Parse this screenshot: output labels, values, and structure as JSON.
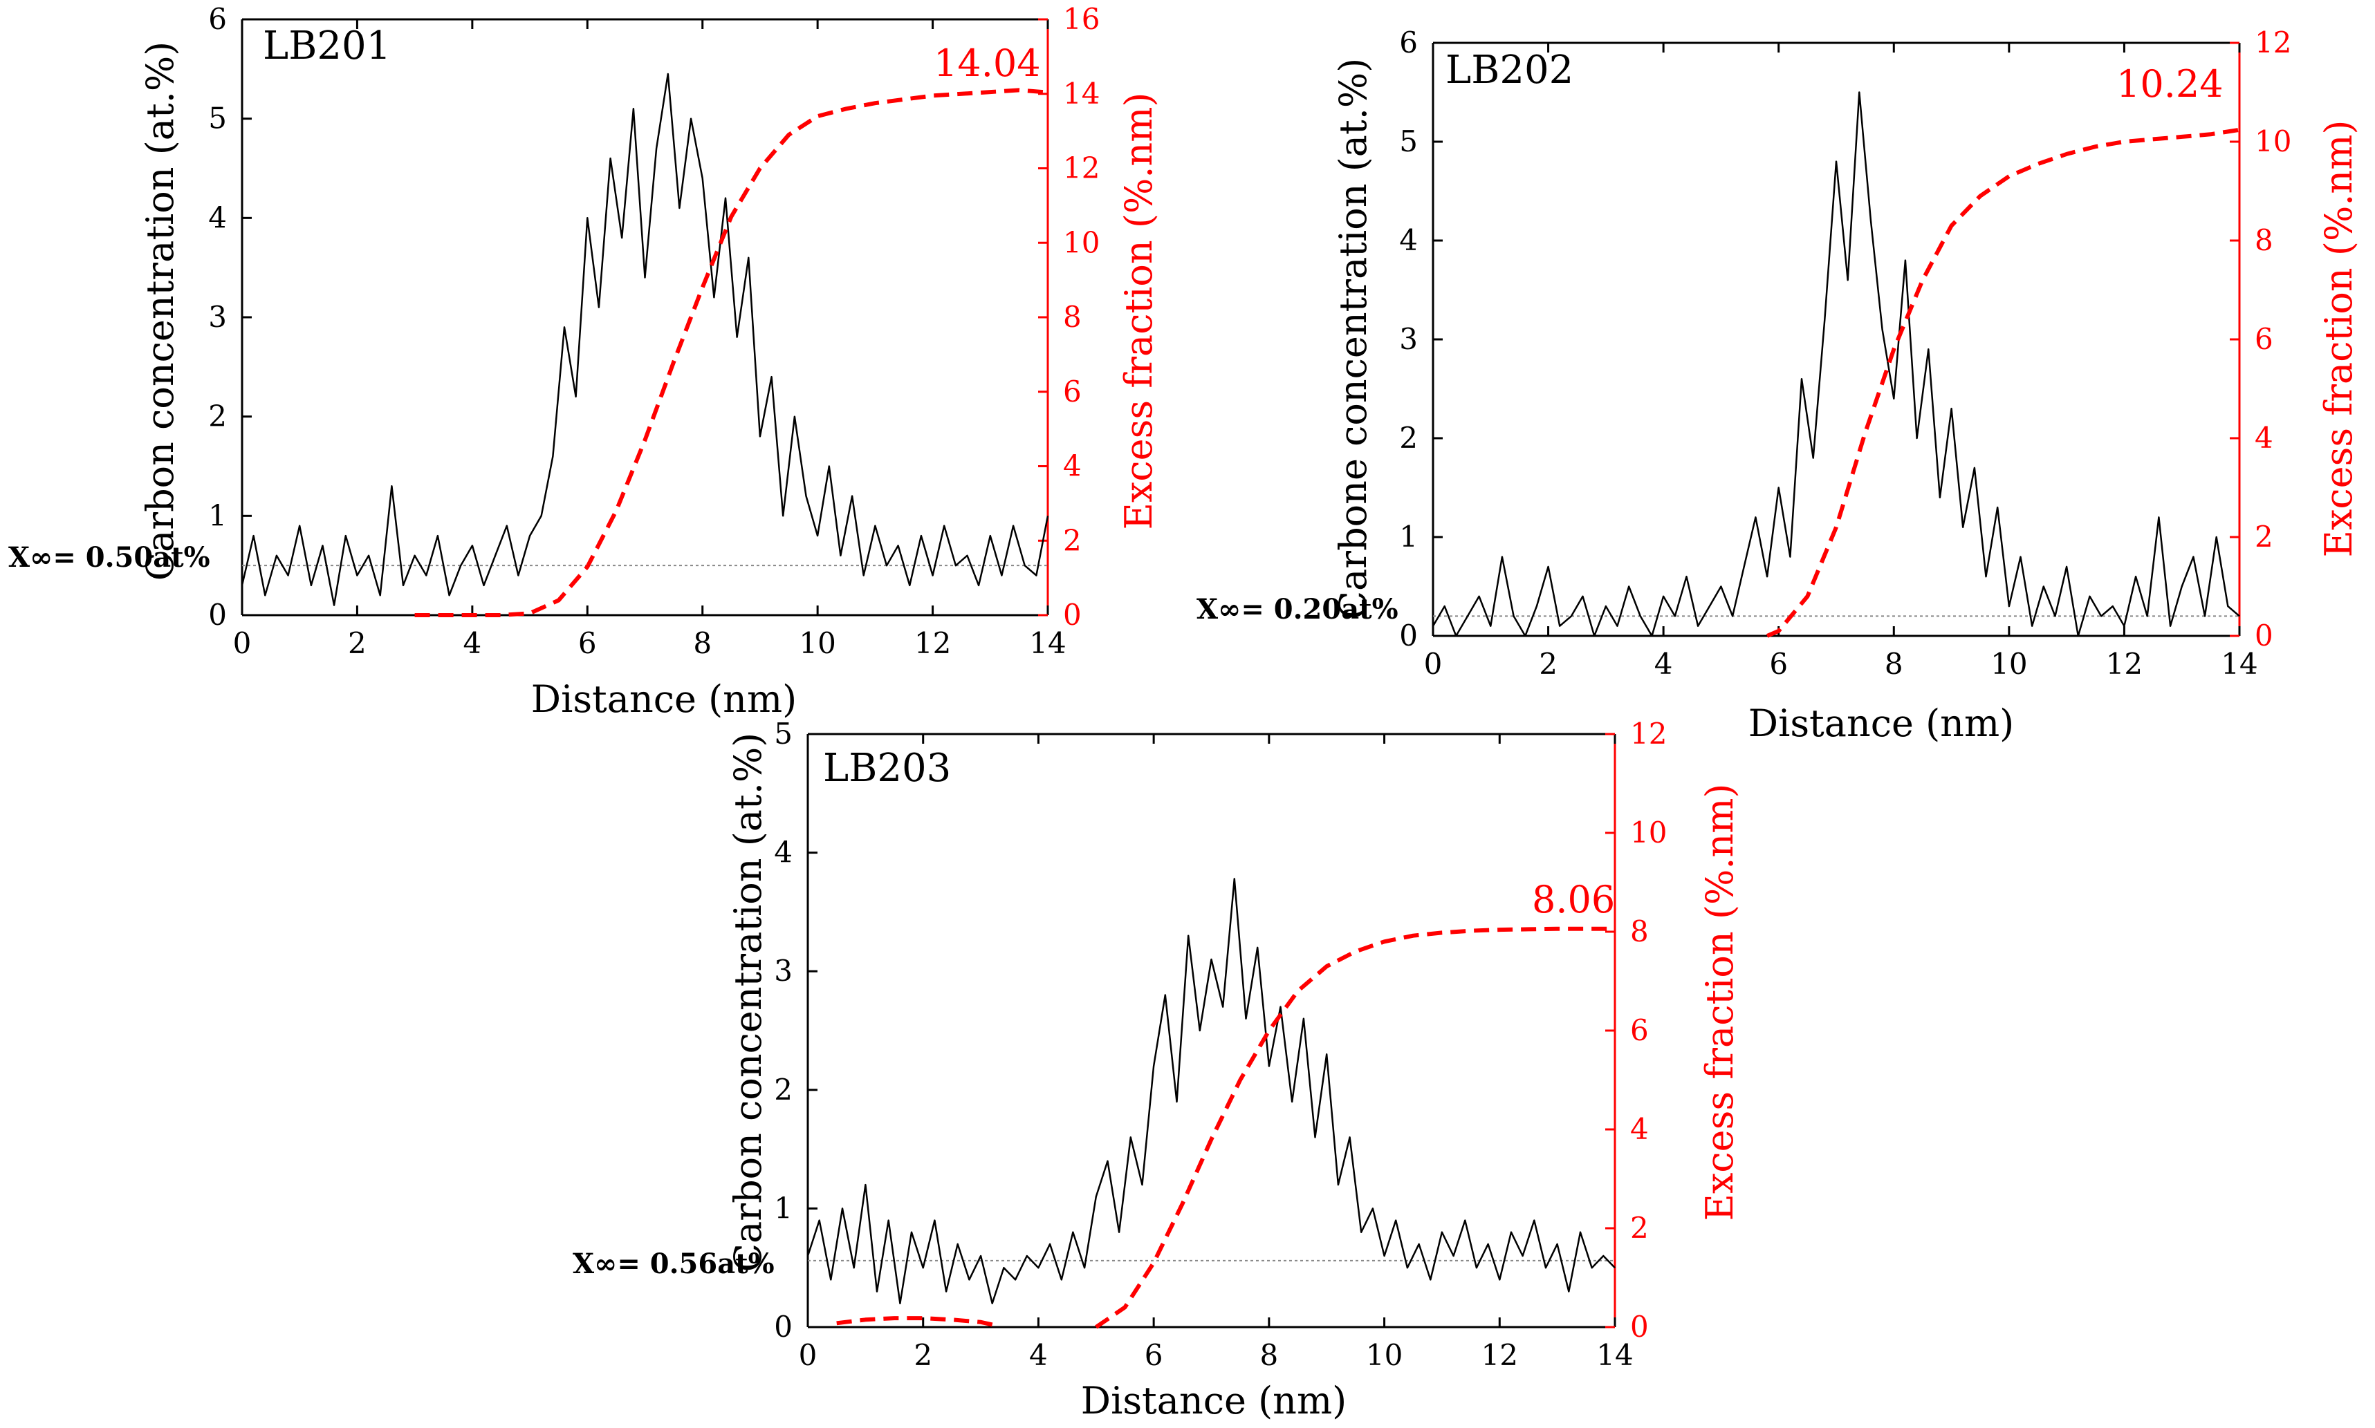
{
  "chart_data": [
    {
      "type": "line",
      "title": "LB201",
      "xlabel": "Distance (nm)",
      "ylabel": "Carbon concentration (at.%)",
      "ylabel_right": "Excess fraction (%.nm)",
      "xlim": [
        0,
        14
      ],
      "ylim": [
        0,
        6
      ],
      "ylim_right": [
        0,
        16
      ],
      "xticks": [
        "0",
        "2",
        "4",
        "6",
        "8",
        "10",
        "12",
        "14"
      ],
      "yticks": [
        "0",
        "1",
        "2",
        "3",
        "4",
        "5",
        "6"
      ],
      "yticks_right": [
        "0",
        "2",
        "4",
        "6",
        "8",
        "10",
        "12",
        "14",
        "16"
      ],
      "baseline_label": "X∞= 0.50at%",
      "baseline_value": 0.5,
      "excess_label": "14.04",
      "series": [
        {
          "name": "Carbon concentration",
          "axis": "left",
          "x": [
            0,
            0.2,
            0.4,
            0.6,
            0.8,
            1,
            1.2,
            1.4,
            1.6,
            1.8,
            2,
            2.2,
            2.4,
            2.6,
            2.8,
            3,
            3.2,
            3.4,
            3.6,
            3.8,
            4,
            4.2,
            4.4,
            4.6,
            4.8,
            5,
            5.2,
            5.4,
            5.6,
            5.8,
            6,
            6.2,
            6.4,
            6.6,
            6.8,
            7,
            7.2,
            7.4,
            7.6,
            7.8,
            8,
            8.2,
            8.4,
            8.6,
            8.8,
            9,
            9.2,
            9.4,
            9.6,
            9.8,
            10,
            10.2,
            10.4,
            10.6,
            10.8,
            11,
            11.2,
            11.4,
            11.6,
            11.8,
            12,
            12.2,
            12.4,
            12.6,
            12.8,
            13,
            13.2,
            13.4,
            13.6,
            13.8,
            14
          ],
          "values": [
            0.3,
            0.8,
            0.2,
            0.6,
            0.4,
            0.9,
            0.3,
            0.7,
            0.1,
            0.8,
            0.4,
            0.6,
            0.2,
            1.3,
            0.3,
            0.6,
            0.4,
            0.8,
            0.2,
            0.5,
            0.7,
            0.3,
            0.6,
            0.9,
            0.4,
            0.8,
            1.0,
            1.6,
            2.9,
            2.2,
            4.0,
            3.1,
            4.6,
            3.8,
            5.1,
            3.4,
            4.7,
            5.45,
            4.1,
            5.0,
            4.4,
            3.2,
            4.2,
            2.8,
            3.6,
            1.8,
            2.4,
            1.0,
            2.0,
            1.2,
            0.8,
            1.5,
            0.6,
            1.2,
            0.4,
            0.9,
            0.5,
            0.7,
            0.3,
            0.8,
            0.4,
            0.9,
            0.5,
            0.6,
            0.3,
            0.8,
            0.4,
            0.9,
            0.5,
            0.4,
            1.0
          ]
        },
        {
          "name": "Excess fraction",
          "axis": "right",
          "x": [
            3.0,
            3.5,
            4.0,
            4.5,
            5.0,
            5.5,
            6.0,
            6.5,
            7.0,
            7.5,
            8.0,
            8.5,
            9.0,
            9.5,
            10.0,
            10.5,
            11.0,
            11.5,
            12.0,
            12.5,
            13.0,
            13.5,
            14.0
          ],
          "values": [
            0.0,
            0.0,
            0.0,
            0.0,
            0.05,
            0.4,
            1.3,
            2.8,
            4.7,
            6.8,
            8.8,
            10.7,
            12.0,
            12.9,
            13.4,
            13.6,
            13.75,
            13.85,
            13.95,
            14.0,
            14.05,
            14.1,
            14.04
          ]
        }
      ]
    },
    {
      "type": "line",
      "title": "LB202",
      "xlabel": "Distance (nm)",
      "ylabel": "Carbone concentration (at.%)",
      "ylabel_right": "Excess fraction (%.nm)",
      "xlim": [
        0,
        14
      ],
      "ylim": [
        0,
        6
      ],
      "ylim_right": [
        0,
        12
      ],
      "xticks": [
        "0",
        "2",
        "4",
        "6",
        "8",
        "10",
        "12",
        "14"
      ],
      "yticks": [
        "0",
        "1",
        "2",
        "3",
        "4",
        "5",
        "6"
      ],
      "yticks_right": [
        "0",
        "2",
        "4",
        "6",
        "8",
        "10",
        "12"
      ],
      "baseline_label": "X∞= 0.20at%",
      "baseline_value": 0.2,
      "excess_label": "10.24",
      "series": [
        {
          "name": "Carbon concentration",
          "axis": "left",
          "x": [
            0,
            0.2,
            0.4,
            0.6,
            0.8,
            1,
            1.2,
            1.4,
            1.6,
            1.8,
            2,
            2.2,
            2.4,
            2.6,
            2.8,
            3,
            3.2,
            3.4,
            3.6,
            3.8,
            4,
            4.2,
            4.4,
            4.6,
            4.8,
            5,
            5.2,
            5.4,
            5.6,
            5.8,
            6,
            6.2,
            6.4,
            6.6,
            6.8,
            7,
            7.2,
            7.4,
            7.6,
            7.8,
            8,
            8.2,
            8.4,
            8.6,
            8.8,
            9,
            9.2,
            9.4,
            9.6,
            9.8,
            10,
            10.2,
            10.4,
            10.6,
            10.8,
            11,
            11.2,
            11.4,
            11.6,
            11.8,
            12,
            12.2,
            12.4,
            12.6,
            12.8,
            13,
            13.2,
            13.4,
            13.6,
            13.8,
            14
          ],
          "values": [
            0.1,
            0.3,
            0.0,
            0.2,
            0.4,
            0.1,
            0.8,
            0.2,
            0.0,
            0.3,
            0.7,
            0.1,
            0.2,
            0.4,
            0.0,
            0.3,
            0.1,
            0.5,
            0.2,
            0.0,
            0.4,
            0.2,
            0.6,
            0.1,
            0.3,
            0.5,
            0.2,
            0.7,
            1.2,
            0.6,
            1.5,
            0.8,
            2.6,
            1.8,
            3.2,
            4.8,
            3.6,
            5.5,
            4.2,
            3.1,
            2.4,
            3.8,
            2.0,
            2.9,
            1.4,
            2.3,
            1.1,
            1.7,
            0.6,
            1.3,
            0.3,
            0.8,
            0.1,
            0.5,
            0.2,
            0.7,
            0.0,
            0.4,
            0.2,
            0.3,
            0.1,
            0.6,
            0.2,
            1.2,
            0.1,
            0.5,
            0.8,
            0.2,
            1.0,
            0.3,
            0.2
          ]
        },
        {
          "name": "Excess fraction",
          "axis": "right",
          "x": [
            5.8,
            6.0,
            6.5,
            7.0,
            7.5,
            8.0,
            8.5,
            9.0,
            9.5,
            10.0,
            10.5,
            11.0,
            11.5,
            12.0,
            12.5,
            13.0,
            13.5,
            14.0
          ],
          "values": [
            0.0,
            0.1,
            0.8,
            2.2,
            4.1,
            5.8,
            7.2,
            8.3,
            8.9,
            9.3,
            9.55,
            9.75,
            9.9,
            10.0,
            10.05,
            10.1,
            10.15,
            10.24
          ]
        }
      ]
    },
    {
      "type": "line",
      "title": "LB203",
      "xlabel": "Distance (nm)",
      "ylabel": "Carbon concentration (at.%)",
      "ylabel_right": "Excess fraction (%.nm)",
      "xlim": [
        0,
        14
      ],
      "ylim": [
        0,
        5
      ],
      "ylim_right": [
        0,
        12
      ],
      "xticks": [
        "0",
        "2",
        "4",
        "6",
        "8",
        "10",
        "12",
        "14"
      ],
      "yticks": [
        "0",
        "1",
        "2",
        "3",
        "4",
        "5"
      ],
      "yticks_right": [
        "0",
        "2",
        "4",
        "6",
        "8",
        "10",
        "12"
      ],
      "baseline_label": "X∞= 0.56at%",
      "baseline_value": 0.56,
      "excess_label": "8.06",
      "series": [
        {
          "name": "Carbon concentration",
          "axis": "left",
          "x": [
            0,
            0.2,
            0.4,
            0.6,
            0.8,
            1,
            1.2,
            1.4,
            1.6,
            1.8,
            2,
            2.2,
            2.4,
            2.6,
            2.8,
            3,
            3.2,
            3.4,
            3.6,
            3.8,
            4,
            4.2,
            4.4,
            4.6,
            4.8,
            5,
            5.2,
            5.4,
            5.6,
            5.8,
            6,
            6.2,
            6.4,
            6.6,
            6.8,
            7,
            7.2,
            7.4,
            7.6,
            7.8,
            8,
            8.2,
            8.4,
            8.6,
            8.8,
            9,
            9.2,
            9.4,
            9.6,
            9.8,
            10,
            10.2,
            10.4,
            10.6,
            10.8,
            11,
            11.2,
            11.4,
            11.6,
            11.8,
            12,
            12.2,
            12.4,
            12.6,
            12.8,
            13,
            13.2,
            13.4,
            13.6,
            13.8,
            14
          ],
          "values": [
            0.6,
            0.9,
            0.4,
            1.0,
            0.5,
            1.2,
            0.3,
            0.9,
            0.2,
            0.8,
            0.5,
            0.9,
            0.3,
            0.7,
            0.4,
            0.6,
            0.2,
            0.5,
            0.4,
            0.6,
            0.5,
            0.7,
            0.4,
            0.8,
            0.5,
            1.1,
            1.4,
            0.8,
            1.6,
            1.2,
            2.2,
            2.8,
            1.9,
            3.3,
            2.5,
            3.1,
            2.7,
            3.78,
            2.6,
            3.2,
            2.2,
            2.7,
            1.9,
            2.6,
            1.6,
            2.3,
            1.2,
            1.6,
            0.8,
            1.0,
            0.6,
            0.9,
            0.5,
            0.7,
            0.4,
            0.8,
            0.6,
            0.9,
            0.5,
            0.7,
            0.4,
            0.8,
            0.6,
            0.9,
            0.5,
            0.7,
            0.3,
            0.8,
            0.5,
            0.6,
            0.5
          ]
        },
        {
          "name": "Excess fraction",
          "axis": "right",
          "x": [
            0.5,
            1.0,
            1.5,
            2.0,
            2.5,
            3.0,
            3.2
          ],
          "values": [
            0.08,
            0.15,
            0.18,
            0.18,
            0.15,
            0.1,
            0.05
          ]
        },
        {
          "name": "Excess fraction (cumulative)",
          "axis": "right",
          "x": [
            5.0,
            5.5,
            6.0,
            6.5,
            7.0,
            7.5,
            8.0,
            8.5,
            9.0,
            9.5,
            10.0,
            10.5,
            11.0,
            11.5,
            12.0,
            12.5,
            13.0,
            13.5,
            14.0
          ],
          "values": [
            0.0,
            0.4,
            1.3,
            2.5,
            3.8,
            5.0,
            6.0,
            6.8,
            7.3,
            7.6,
            7.8,
            7.92,
            7.98,
            8.02,
            8.04,
            8.05,
            8.06,
            8.06,
            8.06
          ]
        }
      ]
    }
  ]
}
